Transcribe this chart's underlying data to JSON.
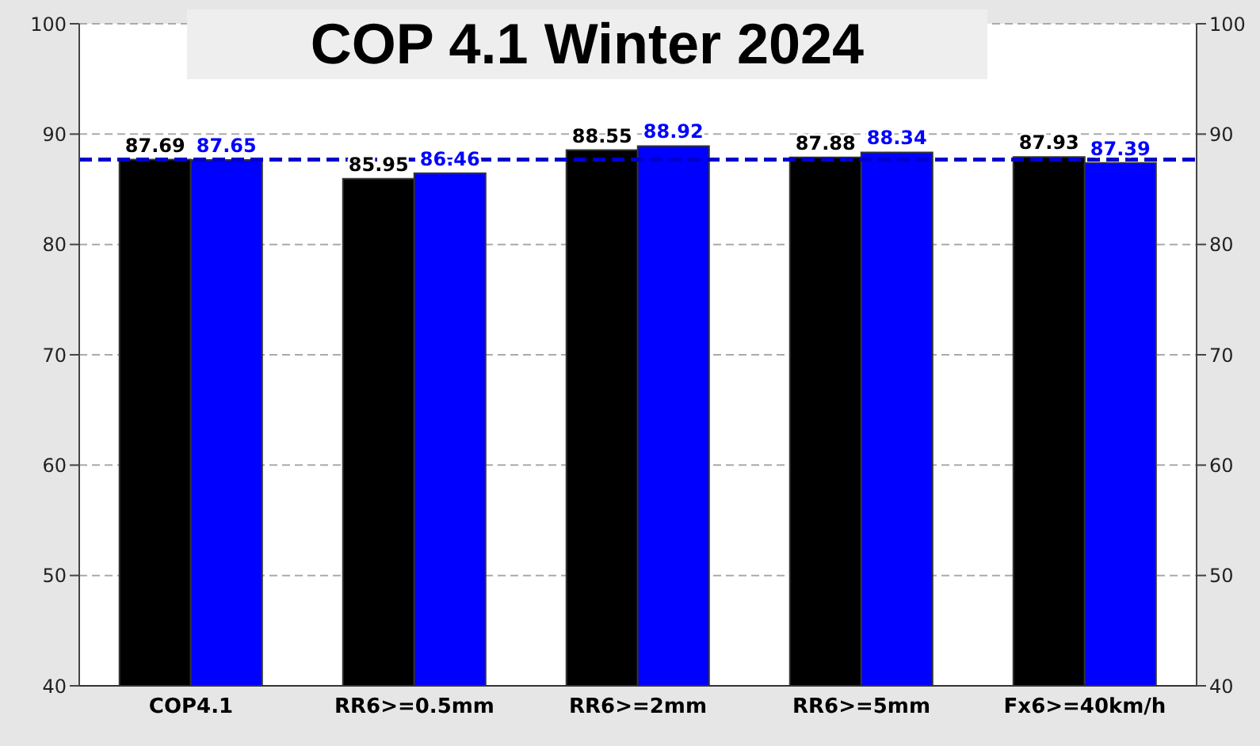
{
  "chart_data": {
    "type": "bar",
    "title": "COP 4.1 Winter 2024",
    "categories": [
      "COP4.1",
      "RR6>=0.5mm",
      "RR6>=2mm",
      "RR6>=5mm",
      "Fx6>=40km/h"
    ],
    "series": [
      {
        "color": "#000000",
        "values": [
          87.69,
          85.95,
          88.55,
          87.88,
          87.93
        ]
      },
      {
        "color": "#0000ff",
        "values": [
          87.65,
          86.46,
          88.92,
          88.34,
          87.39
        ]
      }
    ],
    "ylim": [
      40,
      100
    ],
    "yticks": [
      40,
      50,
      60,
      70,
      80,
      90,
      100
    ],
    "y2lim": [
      40,
      100
    ],
    "y2ticks": [
      40,
      50,
      60,
      70,
      80,
      90,
      100
    ],
    "ref_lines": [
      {
        "axis": "y",
        "value": 87.69,
        "color": "#0000cc",
        "line_style": "dashed"
      }
    ],
    "grid": "y",
    "data_labels": true
  }
}
